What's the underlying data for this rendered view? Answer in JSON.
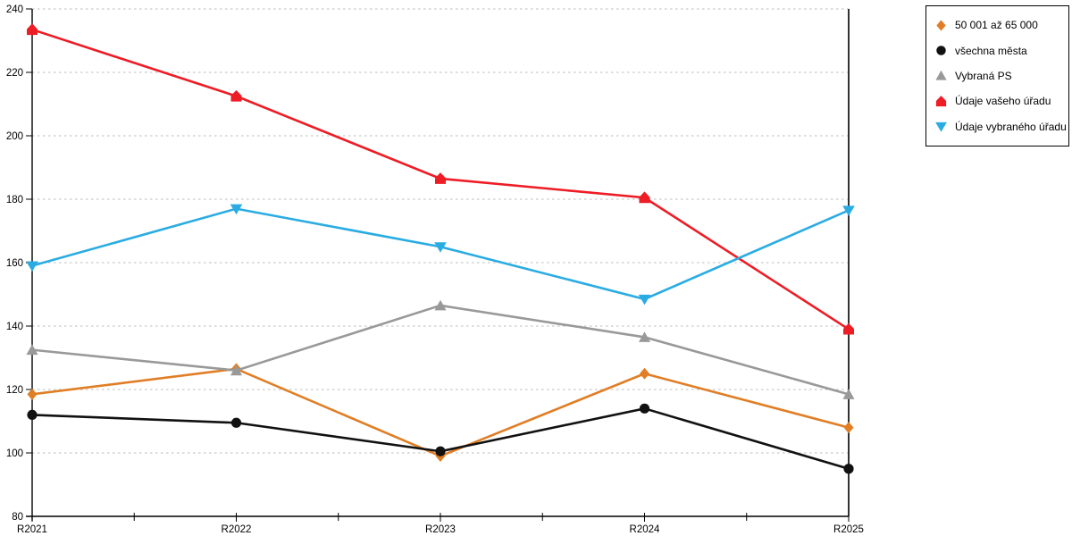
{
  "chart_data": {
    "type": "line",
    "title": "",
    "xlabel": "",
    "ylabel": "",
    "categories": [
      "R2021",
      "R2022",
      "R2023",
      "R2024",
      "R2025"
    ],
    "series": [
      {
        "id": "50001-az-65000",
        "name": "50 001 až 65 000",
        "color": "#E07E26",
        "marker": "diamond",
        "values": [
          118.5,
          126.5,
          99,
          125,
          108
        ]
      },
      {
        "id": "vsechna-mesta",
        "name": "všechna města",
        "color": "#111111",
        "marker": "circle",
        "values": [
          112,
          109.5,
          100.5,
          114,
          95
        ]
      },
      {
        "id": "vybrana-ps",
        "name": "Vybraná PS",
        "color": "#999999",
        "marker": "triangle-up",
        "values": [
          132.5,
          126,
          146.5,
          136.5,
          118.5
        ]
      },
      {
        "id": "udaje-vaseho-uradu",
        "name": "Údaje vašeho úřadu",
        "color": "#EE1C25",
        "marker": "pentagon",
        "values": [
          233.5,
          212.5,
          186.5,
          180.5,
          139
        ]
      },
      {
        "id": "udaje-vybraneho-uradu",
        "name": "Údaje vybraného úřadu",
        "color": "#2AACE2",
        "marker": "triangle-down",
        "values": [
          159,
          177,
          165,
          148.5,
          176.5
        ]
      }
    ],
    "ylim": [
      80,
      240
    ],
    "ytick_step": 20,
    "y_tick_labels": [
      "80",
      "100",
      "120",
      "140",
      "160",
      "180",
      "200",
      "220",
      "240"
    ],
    "grid": "dashed-horizontal",
    "grid_color": "#BBBBBB",
    "axis_color": "#000000",
    "legend_position": "top-right-outside"
  }
}
